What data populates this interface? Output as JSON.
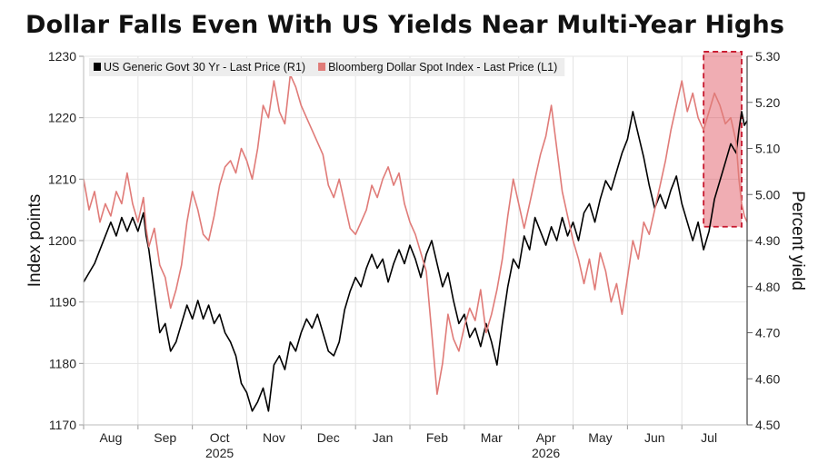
{
  "title": "Dollar Falls Even With US Yields Near Multi-Year Highs",
  "chart_data": {
    "type": "line",
    "title": "Dollar Falls Even With US Yields Near Multi-Year Highs",
    "y_left_label": "Index points",
    "y_right_label": "Percent yield",
    "y_left_lim": [
      1170,
      1230
    ],
    "y_right_lim": [
      4.5,
      5.3
    ],
    "y_left_ticks": [
      "1170",
      "1180",
      "1190",
      "1200",
      "1210",
      "1220",
      "1230"
    ],
    "y_right_ticks": [
      "4.50",
      "4.60",
      "4.70",
      "4.80",
      "4.90",
      "5.00",
      "5.10",
      "5.20",
      "5.30"
    ],
    "x_lim": [
      0,
      12.2
    ],
    "x_month_labels": [
      "Aug",
      "Sep",
      "Oct",
      "Nov",
      "Dec",
      "Jan",
      "Feb",
      "Mar",
      "Apr",
      "May",
      "Jun",
      "Jul"
    ],
    "x_year_labels": [
      {
        "label": "2025",
        "at": 2.5
      },
      {
        "label": "2026",
        "at": 8.5
      }
    ],
    "grid": true,
    "legend_placement": "top-left",
    "highlight_range": {
      "x": [
        11.4,
        12.1
      ],
      "y_right": [
        4.93,
        5.31
      ]
    },
    "series": [
      {
        "name": "US Generic Govt 30 Yr - Last Price (R1)",
        "axis": "right",
        "color": "#000000",
        "points": [
          [
            0.0,
            4.81
          ],
          [
            0.1,
            4.83
          ],
          [
            0.2,
            4.85
          ],
          [
            0.3,
            4.88
          ],
          [
            0.4,
            4.91
          ],
          [
            0.5,
            4.94
          ],
          [
            0.6,
            4.91
          ],
          [
            0.7,
            4.95
          ],
          [
            0.8,
            4.92
          ],
          [
            0.9,
            4.95
          ],
          [
            1.0,
            4.92
          ],
          [
            1.1,
            4.96
          ],
          [
            1.15,
            4.91
          ],
          [
            1.2,
            4.88
          ],
          [
            1.3,
            4.79
          ],
          [
            1.4,
            4.7
          ],
          [
            1.5,
            4.72
          ],
          [
            1.6,
            4.66
          ],
          [
            1.7,
            4.68
          ],
          [
            1.8,
            4.72
          ],
          [
            1.9,
            4.76
          ],
          [
            2.0,
            4.73
          ],
          [
            2.1,
            4.77
          ],
          [
            2.2,
            4.73
          ],
          [
            2.3,
            4.76
          ],
          [
            2.4,
            4.72
          ],
          [
            2.5,
            4.74
          ],
          [
            2.6,
            4.7
          ],
          [
            2.7,
            4.68
          ],
          [
            2.8,
            4.65
          ],
          [
            2.9,
            4.59
          ],
          [
            3.0,
            4.57
          ],
          [
            3.1,
            4.53
          ],
          [
            3.2,
            4.55
          ],
          [
            3.3,
            4.58
          ],
          [
            3.4,
            4.53
          ],
          [
            3.5,
            4.63
          ],
          [
            3.6,
            4.65
          ],
          [
            3.7,
            4.62
          ],
          [
            3.8,
            4.68
          ],
          [
            3.9,
            4.66
          ],
          [
            4.0,
            4.7
          ],
          [
            4.1,
            4.73
          ],
          [
            4.2,
            4.71
          ],
          [
            4.3,
            4.74
          ],
          [
            4.4,
            4.7
          ],
          [
            4.5,
            4.66
          ],
          [
            4.6,
            4.65
          ],
          [
            4.7,
            4.68
          ],
          [
            4.8,
            4.75
          ],
          [
            4.9,
            4.79
          ],
          [
            5.0,
            4.82
          ],
          [
            5.1,
            4.8
          ],
          [
            5.2,
            4.84
          ],
          [
            5.3,
            4.87
          ],
          [
            5.4,
            4.84
          ],
          [
            5.5,
            4.86
          ],
          [
            5.6,
            4.81
          ],
          [
            5.7,
            4.85
          ],
          [
            5.8,
            4.88
          ],
          [
            5.9,
            4.85
          ],
          [
            6.0,
            4.89
          ],
          [
            6.1,
            4.86
          ],
          [
            6.2,
            4.82
          ],
          [
            6.3,
            4.87
          ],
          [
            6.4,
            4.9
          ],
          [
            6.5,
            4.85
          ],
          [
            6.6,
            4.8
          ],
          [
            6.7,
            4.83
          ],
          [
            6.8,
            4.77
          ],
          [
            6.9,
            4.72
          ],
          [
            7.0,
            4.74
          ],
          [
            7.1,
            4.69
          ],
          [
            7.2,
            4.71
          ],
          [
            7.3,
            4.67
          ],
          [
            7.4,
            4.72
          ],
          [
            7.5,
            4.68
          ],
          [
            7.6,
            4.63
          ],
          [
            7.7,
            4.72
          ],
          [
            7.8,
            4.8
          ],
          [
            7.9,
            4.86
          ],
          [
            8.0,
            4.84
          ],
          [
            8.1,
            4.91
          ],
          [
            8.2,
            4.88
          ],
          [
            8.3,
            4.95
          ],
          [
            8.4,
            4.92
          ],
          [
            8.5,
            4.89
          ],
          [
            8.6,
            4.93
          ],
          [
            8.7,
            4.9
          ],
          [
            8.8,
            4.95
          ],
          [
            8.9,
            4.91
          ],
          [
            9.0,
            4.94
          ],
          [
            9.1,
            4.9
          ],
          [
            9.2,
            4.96
          ],
          [
            9.3,
            4.98
          ],
          [
            9.4,
            4.94
          ],
          [
            9.5,
            4.99
          ],
          [
            9.6,
            5.03
          ],
          [
            9.7,
            5.01
          ],
          [
            9.8,
            5.05
          ],
          [
            9.9,
            5.09
          ],
          [
            10.0,
            5.12
          ],
          [
            10.1,
            5.18
          ],
          [
            10.2,
            5.13
          ],
          [
            10.3,
            5.08
          ],
          [
            10.4,
            5.02
          ],
          [
            10.5,
            4.97
          ],
          [
            10.6,
            5.0
          ],
          [
            10.7,
            4.97
          ],
          [
            10.8,
            5.01
          ],
          [
            10.9,
            5.04
          ],
          [
            11.0,
            4.98
          ],
          [
            11.1,
            4.94
          ],
          [
            11.2,
            4.9
          ],
          [
            11.3,
            4.94
          ],
          [
            11.4,
            4.88
          ],
          [
            11.5,
            4.92
          ],
          [
            11.6,
            4.99
          ],
          [
            11.7,
            5.03
          ],
          [
            11.8,
            5.07
          ],
          [
            11.9,
            5.11
          ],
          [
            12.0,
            5.09
          ],
          [
            12.05,
            5.14
          ],
          [
            12.1,
            5.18
          ],
          [
            12.15,
            5.15
          ],
          [
            12.2,
            5.16
          ]
        ]
      },
      {
        "name": "Bloomberg Dollar Spot Index - Last Price (L1)",
        "axis": "left",
        "color": "#e07b78",
        "points": [
          [
            0.0,
            1210
          ],
          [
            0.1,
            1205
          ],
          [
            0.2,
            1208
          ],
          [
            0.3,
            1203
          ],
          [
            0.4,
            1206
          ],
          [
            0.5,
            1204
          ],
          [
            0.6,
            1208
          ],
          [
            0.7,
            1206
          ],
          [
            0.8,
            1211
          ],
          [
            0.9,
            1206
          ],
          [
            1.0,
            1203
          ],
          [
            1.1,
            1207
          ],
          [
            1.15,
            1202
          ],
          [
            1.2,
            1199
          ],
          [
            1.3,
            1202
          ],
          [
            1.4,
            1196
          ],
          [
            1.5,
            1194
          ],
          [
            1.6,
            1189
          ],
          [
            1.7,
            1192
          ],
          [
            1.8,
            1196
          ],
          [
            1.9,
            1203
          ],
          [
            2.0,
            1208
          ],
          [
            2.1,
            1205
          ],
          [
            2.2,
            1201
          ],
          [
            2.3,
            1200
          ],
          [
            2.4,
            1204
          ],
          [
            2.5,
            1209
          ],
          [
            2.6,
            1212
          ],
          [
            2.7,
            1213
          ],
          [
            2.8,
            1211
          ],
          [
            2.9,
            1215
          ],
          [
            3.0,
            1213
          ],
          [
            3.1,
            1210
          ],
          [
            3.2,
            1215
          ],
          [
            3.3,
            1222
          ],
          [
            3.4,
            1220
          ],
          [
            3.5,
            1226
          ],
          [
            3.6,
            1221
          ],
          [
            3.7,
            1219
          ],
          [
            3.8,
            1227
          ],
          [
            3.9,
            1225
          ],
          [
            4.0,
            1222
          ],
          [
            4.1,
            1220
          ],
          [
            4.2,
            1218
          ],
          [
            4.3,
            1216
          ],
          [
            4.4,
            1214
          ],
          [
            4.5,
            1209
          ],
          [
            4.6,
            1207
          ],
          [
            4.7,
            1210
          ],
          [
            4.8,
            1206
          ],
          [
            4.9,
            1202
          ],
          [
            5.0,
            1201
          ],
          [
            5.1,
            1203
          ],
          [
            5.2,
            1205
          ],
          [
            5.3,
            1209
          ],
          [
            5.4,
            1207
          ],
          [
            5.5,
            1210
          ],
          [
            5.6,
            1212
          ],
          [
            5.7,
            1209
          ],
          [
            5.8,
            1211
          ],
          [
            5.9,
            1206
          ],
          [
            6.0,
            1203
          ],
          [
            6.1,
            1201
          ],
          [
            6.2,
            1198
          ],
          [
            6.3,
            1195
          ],
          [
            6.4,
            1185
          ],
          [
            6.5,
            1175
          ],
          [
            6.6,
            1180
          ],
          [
            6.7,
            1188
          ],
          [
            6.8,
            1184
          ],
          [
            6.9,
            1182
          ],
          [
            7.0,
            1186
          ],
          [
            7.1,
            1189
          ],
          [
            7.2,
            1187
          ],
          [
            7.3,
            1192
          ],
          [
            7.4,
            1185
          ],
          [
            7.5,
            1188
          ],
          [
            7.6,
            1192
          ],
          [
            7.7,
            1197
          ],
          [
            7.8,
            1204
          ],
          [
            7.9,
            1210
          ],
          [
            8.0,
            1206
          ],
          [
            8.1,
            1202
          ],
          [
            8.2,
            1206
          ],
          [
            8.3,
            1210
          ],
          [
            8.4,
            1214
          ],
          [
            8.5,
            1217
          ],
          [
            8.6,
            1222
          ],
          [
            8.7,
            1215
          ],
          [
            8.8,
            1208
          ],
          [
            8.9,
            1204
          ],
          [
            9.0,
            1200
          ],
          [
            9.1,
            1197
          ],
          [
            9.2,
            1193
          ],
          [
            9.3,
            1197
          ],
          [
            9.4,
            1192
          ],
          [
            9.5,
            1198
          ],
          [
            9.6,
            1195
          ],
          [
            9.7,
            1190
          ],
          [
            9.8,
            1193
          ],
          [
            9.9,
            1188
          ],
          [
            10.0,
            1194
          ],
          [
            10.1,
            1200
          ],
          [
            10.2,
            1197
          ],
          [
            10.3,
            1203
          ],
          [
            10.4,
            1201
          ],
          [
            10.5,
            1205
          ],
          [
            10.6,
            1209
          ],
          [
            10.7,
            1213
          ],
          [
            10.8,
            1218
          ],
          [
            10.9,
            1222
          ],
          [
            11.0,
            1226
          ],
          [
            11.1,
            1221
          ],
          [
            11.2,
            1224
          ],
          [
            11.3,
            1220
          ],
          [
            11.4,
            1218
          ],
          [
            11.5,
            1221
          ],
          [
            11.6,
            1224
          ],
          [
            11.7,
            1222
          ],
          [
            11.8,
            1219
          ],
          [
            11.9,
            1220
          ],
          [
            12.0,
            1216
          ],
          [
            12.05,
            1210
          ],
          [
            12.1,
            1206
          ],
          [
            12.15,
            1204
          ],
          [
            12.2,
            1203
          ]
        ]
      }
    ]
  }
}
